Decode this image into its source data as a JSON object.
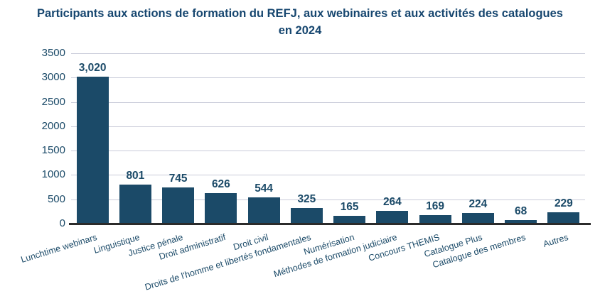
{
  "chart_data": {
    "type": "bar",
    "title": "Participants aux actions de formation du REFJ, aux webinaires et aux activités des catalogues en 2024",
    "categories": [
      "Lunchtime webinars",
      "Linguistique",
      "Justice pénale",
      "Droit administratif",
      "Droit civil",
      "Droits de l'homme et libertés fondamentales",
      "Numérisation",
      "Méthodes de formation judiciaire",
      "Concours THEMIS",
      "Catalogue Plus",
      "Catalogue des membres",
      "Autres"
    ],
    "values": [
      3020,
      801,
      745,
      626,
      544,
      325,
      165,
      264,
      169,
      224,
      68,
      229
    ],
    "value_labels": [
      "3,020",
      "801",
      "745",
      "626",
      "544",
      "325",
      "165",
      "264",
      "169",
      "224",
      "68",
      "229"
    ],
    "xlabel": "",
    "ylabel": "",
    "ylim": [
      0,
      3500
    ],
    "ytick_step": 500,
    "ytick_labels": [
      "0",
      "500",
      "1000",
      "1500",
      "2000",
      "2500",
      "3000",
      "3500"
    ],
    "grid": true,
    "legend_position": "none",
    "colors": {
      "bar": "#1b4a68",
      "title": "#16466f",
      "gridline": "#c9cbd9",
      "axis_line": "#2b2b2b",
      "background": "#ffffff"
    }
  }
}
